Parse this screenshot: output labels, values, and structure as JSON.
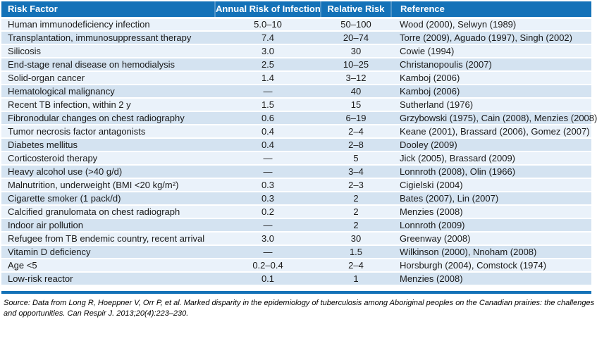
{
  "table": {
    "columns": [
      "Risk Factor",
      "Annual Risk of Infection",
      "Relative Risk",
      "Reference"
    ],
    "rows": [
      {
        "factor": "Human immunodeficiency infection",
        "annual": "5.0–10",
        "relative": "50–100",
        "reference": "Wood (2000), Selwyn (1989)"
      },
      {
        "factor": "Transplantation, immunosuppressant therapy",
        "annual": "7.4",
        "relative": "20–74",
        "reference": "Torre (2009), Aguado (1997), Singh (2002)"
      },
      {
        "factor": "Silicosis",
        "annual": "3.0",
        "relative": "30",
        "reference": "Cowie (1994)"
      },
      {
        "factor": "End-stage renal disease on hemodialysis",
        "annual": "2.5",
        "relative": "10–25",
        "reference": "Christanopoulis (2007)"
      },
      {
        "factor": "Solid-organ cancer",
        "annual": "1.4",
        "relative": "3–12",
        "reference": "Kamboj (2006)"
      },
      {
        "factor": "Hematological malignancy",
        "annual": "—",
        "relative": "40",
        "reference": "Kamboj (2006)"
      },
      {
        "factor": "Recent TB infection, within 2 y",
        "annual": "1.5",
        "relative": "15",
        "reference": "Sutherland (1976)"
      },
      {
        "factor": "Fibronodular changes on chest radiography",
        "annual": "0.6",
        "relative": "6–19",
        "reference": "Grzybowski (1975), Cain (2008), Menzies (2008)"
      },
      {
        "factor": "Tumor necrosis factor antagonists",
        "annual": "0.4",
        "relative": "2–4",
        "reference": "Keane (2001), Brassard (2006), Gomez (2007)"
      },
      {
        "factor": "Diabetes mellitus",
        "annual": "0.4",
        "relative": "2–8",
        "reference": "Dooley (2009)"
      },
      {
        "factor": "Corticosteroid therapy",
        "annual": "—",
        "relative": "5",
        "reference": "Jick (2005), Brassard (2009)"
      },
      {
        "factor": "Heavy alcohol use (>40 g/d)",
        "annual": "—",
        "relative": "3–4",
        "reference": "Lonnroth (2008), Olin (1966)"
      },
      {
        "factor": "Malnutrition, underweight (BMI <20 kg/m²)",
        "annual": "0.3",
        "relative": "2–3",
        "reference": "Cigielski (2004)"
      },
      {
        "factor": "Cigarette smoker (1 pack/d)",
        "annual": "0.3",
        "relative": "2",
        "reference": "Bates (2007), Lin (2007)"
      },
      {
        "factor": "Calcified granulomata on chest radiograph",
        "annual": "0.2",
        "relative": "2",
        "reference": "Menzies (2008)"
      },
      {
        "factor": "Indoor air pollution",
        "annual": "—",
        "relative": "2",
        "reference": "Lonnroth (2009)"
      },
      {
        "factor": "Refugee from TB endemic country, recent arrival",
        "annual": "3.0",
        "relative": "30",
        "reference": "Greenway (2008)"
      },
      {
        "factor": "Vitamin D deficiency",
        "annual": "—",
        "relative": "1.5",
        "reference": "Wilkinson (2000), Nnoham (2008)"
      },
      {
        "factor": "Age <5",
        "annual": "0.2–0.4",
        "relative": "2–4",
        "reference": "Horsburgh (2004), Comstock (1974)"
      },
      {
        "factor": "Low-risk reactor",
        "annual": "0.1",
        "relative": "1",
        "reference": "Menzies (2008)"
      }
    ]
  },
  "footer": {
    "line1": "Source: Data from Long R, Hoeppner V, Orr P, et al. Marked disparity in the epidemiology of tuberculosis among Aboriginal peoples on the Canadian prairies: the challenges",
    "line2": "and opportunities. Can Respir J. 2013;20(4):223–230."
  },
  "colors": {
    "header_bg": "#1472B8",
    "header_divider": "#4E94C9",
    "row_odd": "#EAF2FA",
    "row_even": "#D4E3F1",
    "bottom_rule": "#1472B8",
    "header_text": "#FFFFFF"
  }
}
